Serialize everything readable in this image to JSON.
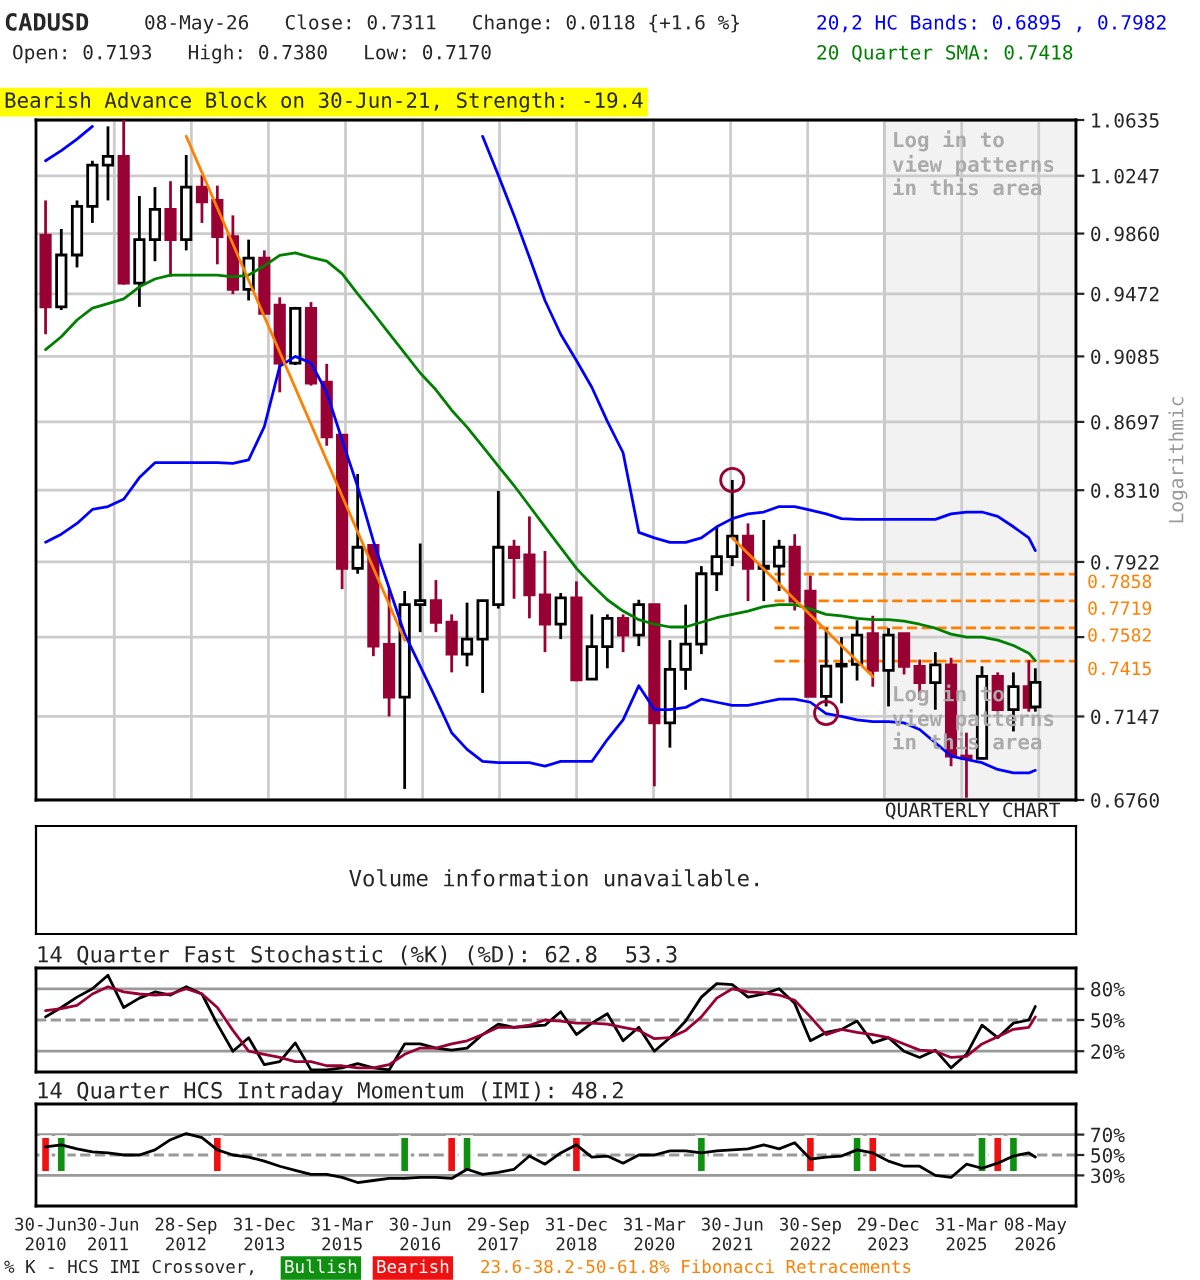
{
  "chart_data": [
    {
      "type": "candlestick",
      "title": "CADUSD",
      "x": [
        "2010-06-30",
        "2010-09-30",
        "2010-12-31",
        "2011-03-31",
        "2011-06-30",
        "2011-09-30",
        "2011-12-31",
        "2012-03-31",
        "2012-06-30",
        "2012-09-30",
        "2012-12-31",
        "2013-03-31",
        "2013-06-30",
        "2013-09-30",
        "2013-12-31",
        "2014-03-31",
        "2014-06-30",
        "2014-09-30",
        "2014-12-31",
        "2015-03-31",
        "2015-06-30",
        "2015-09-30",
        "2015-12-31",
        "2016-03-31",
        "2016-06-30",
        "2016-09-30",
        "2016-12-31",
        "2017-03-31",
        "2017-06-30",
        "2017-09-30",
        "2017-12-31",
        "2018-03-31",
        "2018-06-30",
        "2018-09-30",
        "2018-12-31",
        "2019-03-31",
        "2019-06-30",
        "2019-09-30",
        "2019-12-31",
        "2020-03-31",
        "2020-06-30",
        "2020-09-30",
        "2020-12-31",
        "2021-03-31",
        "2021-06-30",
        "2021-09-30",
        "2021-12-31",
        "2022-03-31",
        "2022-06-30",
        "2022-09-30",
        "2022-12-31",
        "2023-03-31",
        "2023-06-30",
        "2023-09-30",
        "2023-12-31",
        "2024-03-31",
        "2024-06-30",
        "2024-09-30",
        "2024-12-31",
        "2025-03-31",
        "2025-06-30",
        "2025-09-30",
        "2025-12-31",
        "2026-03-31",
        "2026-05-08"
      ],
      "ohlc": [
        [
          0.985,
          1.008,
          0.922,
          0.939
        ],
        [
          0.939,
          0.989,
          0.937,
          0.972
        ],
        [
          0.972,
          1.008,
          0.964,
          1.004
        ],
        [
          1.004,
          1.035,
          0.993,
          1.032
        ],
        [
          1.032,
          1.059,
          1.008,
          1.038
        ],
        [
          1.038,
          1.0635,
          0.953,
          0.954
        ],
        [
          0.954,
          1.011,
          0.939,
          0.982
        ],
        [
          0.982,
          1.017,
          0.968,
          1.002
        ],
        [
          1.002,
          1.021,
          0.958,
          0.982
        ],
        [
          0.982,
          1.039,
          0.975,
          1.017
        ],
        [
          1.017,
          1.025,
          0.993,
          1.007
        ],
        [
          1.008,
          1.018,
          0.966,
          0.984
        ],
        [
          0.984,
          0.998,
          0.947,
          0.95
        ],
        [
          0.95,
          0.982,
          0.943,
          0.97
        ],
        [
          0.97,
          0.975,
          0.934,
          0.935
        ],
        [
          0.94,
          0.945,
          0.887,
          0.9045
        ],
        [
          0.9045,
          0.939,
          0.9033,
          0.938
        ],
        [
          0.938,
          0.942,
          0.891,
          0.8925
        ],
        [
          0.893,
          0.904,
          0.856,
          0.861
        ],
        [
          0.862,
          0.862,
          0.778,
          0.7888
        ],
        [
          0.7888,
          0.84,
          0.786,
          0.8
        ],
        [
          0.801,
          0.801,
          0.744,
          0.749
        ],
        [
          0.7498,
          0.778,
          0.7147,
          0.724
        ],
        [
          0.724,
          0.777,
          0.681,
          0.77
        ],
        [
          0.77,
          0.802,
          0.756,
          0.772
        ],
        [
          0.772,
          0.7827,
          0.756,
          0.761
        ],
        [
          0.761,
          0.765,
          0.736,
          0.745
        ],
        [
          0.745,
          0.771,
          0.739,
          0.7525
        ],
        [
          0.7525,
          0.7725,
          0.726,
          0.772
        ],
        [
          0.77,
          0.8306,
          0.768,
          0.8
        ],
        [
          0.8,
          0.804,
          0.773,
          0.7945
        ],
        [
          0.796,
          0.8166,
          0.763,
          0.775
        ],
        [
          0.775,
          0.798,
          0.746,
          0.76
        ],
        [
          0.76,
          0.776,
          0.7525,
          0.7735
        ],
        [
          0.7735,
          0.782,
          0.7317,
          0.7323
        ],
        [
          0.7327,
          0.765,
          0.7323,
          0.7487
        ],
        [
          0.7487,
          0.765,
          0.738,
          0.763
        ],
        [
          0.763,
          0.765,
          0.746,
          0.7545
        ],
        [
          0.7545,
          0.7725,
          0.749,
          0.77
        ],
        [
          0.77,
          0.77,
          0.6822,
          0.7116
        ],
        [
          0.7116,
          0.752,
          0.7,
          0.7375
        ],
        [
          0.7375,
          0.77,
          0.7275,
          0.75
        ],
        [
          0.75,
          0.79,
          0.745,
          0.786
        ],
        [
          0.786,
          0.811,
          0.777,
          0.795
        ],
        [
          0.795,
          0.8367,
          0.79,
          0.806
        ],
        [
          0.806,
          0.8128,
          0.7718,
          0.7888
        ],
        [
          0.7888,
          0.8147,
          0.7718,
          0.79
        ],
        [
          0.79,
          0.804,
          0.777,
          0.8
        ],
        [
          0.8,
          0.807,
          0.767,
          0.7718
        ],
        [
          0.777,
          0.785,
          0.7243,
          0.7243
        ],
        [
          0.7243,
          0.758,
          0.7195,
          0.7391
        ],
        [
          0.7391,
          0.7535,
          0.721,
          0.74
        ],
        [
          0.74,
          0.762,
          0.732,
          0.7545
        ],
        [
          0.7552,
          0.7643,
          0.729,
          0.737
        ],
        [
          0.737,
          0.758,
          0.7195,
          0.7545
        ],
        [
          0.7552,
          0.7555,
          0.735,
          0.739
        ],
        [
          0.739,
          0.7423,
          0.7227,
          0.731
        ],
        [
          0.731,
          0.746,
          0.7179,
          0.7397
        ],
        [
          0.7397,
          0.7432,
          0.6914,
          0.6961
        ],
        [
          0.6961,
          0.707,
          0.677,
          0.695
        ],
        [
          0.695,
          0.739,
          0.6945,
          0.734
        ],
        [
          0.734,
          0.736,
          0.717,
          0.718
        ],
        [
          0.718,
          0.736,
          0.7076,
          0.729
        ],
        [
          0.729,
          0.742,
          0.717,
          0.719
        ],
        [
          0.7193,
          0.738,
          0.717,
          0.7311
        ]
      ],
      "colors": [
        "#990033",
        "#ffffff",
        "#ffffff",
        "#ffffff",
        "#ffffff",
        "#990033",
        "#ffffff",
        "#ffffff",
        "#990033",
        "#ffffff",
        "#990033",
        "#990033",
        "#990033",
        "#ffffff",
        "#990033",
        "#990033",
        "#ffffff",
        "#990033",
        "#990033",
        "#990033",
        "#ffffff",
        "#990033",
        "#990033",
        "#ffffff",
        "#ffffff",
        "#990033",
        "#990033",
        "#ffffff",
        "#ffffff",
        "#ffffff",
        "#990033",
        "#990033",
        "#990033",
        "#ffffff",
        "#990033",
        "#ffffff",
        "#ffffff",
        "#990033",
        "#ffffff",
        "#990033",
        "#ffffff",
        "#ffffff",
        "#ffffff",
        "#ffffff",
        "#ffffff",
        "#990033",
        "#ffffff",
        "#ffffff",
        "#990033",
        "#990033",
        "#ffffff",
        "#ffffff",
        "#ffffff",
        "#990033",
        "#ffffff",
        "#990033",
        "#990033",
        "#ffffff",
        "#990033",
        "#990033",
        "#ffffff",
        "#990033",
        "#ffffff",
        "#990033",
        "#ffffff"
      ],
      "series": [
        {
          "type": "line",
          "name": "20,2 HC Bands: 0.6895 , 0.7982",
          "color": "#0000ff",
          "values": [
            1.035,
            1.042,
            1.05,
            1.059,
            null,
            null,
            null,
            null,
            null,
            null,
            null,
            null,
            null,
            null,
            null,
            null,
            null,
            null,
            null,
            null,
            null,
            null,
            null,
            null,
            null,
            null,
            null,
            null,
            1.052,
            1.025,
            0.998,
            0.9705,
            0.943,
            0.922,
            0.906,
            0.89,
            0.87,
            0.852,
            0.808,
            0.805,
            0.8026,
            0.8026,
            0.805,
            0.811,
            0.8154,
            0.818,
            0.819,
            0.822,
            0.822,
            0.82,
            0.818,
            0.8154,
            0.815,
            0.815,
            0.815,
            0.815,
            0.815,
            0.815,
            0.818,
            0.819,
            0.819,
            0.8166,
            0.811,
            0.805,
            0.7982
          ]
        },
        {
          "type": "line",
          "color": "#0000ff",
          "values": [
            0.8027,
            0.807,
            0.8128,
            0.8204,
            0.822,
            0.826,
            0.838,
            0.8464,
            0.8464,
            0.8464,
            0.8464,
            0.8464,
            0.846,
            0.848,
            0.867,
            0.9025,
            0.9085,
            0.9045,
            0.887,
            0.8593,
            0.833,
            0.8033,
            0.7786,
            0.7551,
            0.7391,
            0.7231,
            0.707,
            0.6992,
            0.6936,
            0.693,
            0.693,
            0.693,
            0.6914,
            0.6936,
            0.6936,
            0.6936,
            0.7038,
            0.7131,
            0.7295,
            0.718,
            0.718,
            0.719,
            0.723,
            0.7215,
            0.72,
            0.72,
            0.7215,
            0.723,
            0.723,
            0.7215,
            0.716,
            0.7147,
            0.7131,
            0.7122,
            0.7122,
            0.7116,
            0.7085,
            0.7023,
            0.6961,
            0.6945,
            0.693,
            0.6899,
            0.6883,
            0.6883,
            0.6895
          ]
        },
        {
          "type": "line",
          "name": "20 Quarter SMA: 0.7418",
          "color": "#008000",
          "values": [
            0.9126,
            0.9205,
            0.9308,
            0.9382,
            0.941,
            0.944,
            0.9516,
            0.9566,
            0.9591,
            0.9591,
            0.9591,
            0.9591,
            0.958,
            0.9591,
            0.965,
            0.9717,
            0.9734,
            0.9705,
            0.968,
            0.96,
            0.9472,
            0.935,
            0.9226,
            0.9105,
            0.8985,
            0.8885,
            0.8765,
            0.8667,
            0.8556,
            0.8445,
            0.8336,
            0.8223,
            0.8109,
            0.7998,
            0.7888,
            0.7803,
            0.7725,
            0.7667,
            0.7623,
            0.76,
            0.7586,
            0.7586,
            0.761,
            0.7633,
            0.765,
            0.7667,
            0.769,
            0.77,
            0.77,
            0.7677,
            0.765,
            0.7643,
            0.763,
            0.7623,
            0.7623,
            0.7616,
            0.76,
            0.758,
            0.755,
            0.7535,
            0.7535,
            0.752,
            0.7493,
            0.7455,
            0.7418
          ]
        },
        {
          "type": "line",
          "color": "#ff8000",
          "x": [
            "2012-09-30",
            "2016-03-31"
          ],
          "values": [
            1.052,
            0.7519
          ]
        },
        {
          "type": "line",
          "color": "#ff8000",
          "x": [
            "2021-06-30",
            "2023-09-30"
          ],
          "values": [
            0.805,
            0.734
          ]
        },
        {
          "type": "scatter",
          "marker": "circle",
          "color": "#990033",
          "x": [
            "2021-06-30",
            "2022-12-31"
          ],
          "values": [
            0.8367,
            0.7163
          ]
        }
      ],
      "log": true,
      "ylim": [
        0.676,
        1.0635
      ],
      "yticks": [
        1.0635,
        1.0247,
        {
          "value": 0.986,
          "label": "0.9860"
        },
        0.9472,
        0.9085,
        0.8697,
        {
          "value": 0.831,
          "label": "0.8310"
        },
        0.7922,
        {
          "value": 0.7535,
          "label": null
        },
        0.7147,
        {
          "value": 0.676,
          "label": "0.6760"
        }
      ],
      "xlim": [
        "2010-05-05",
        "2027-01-01"
      ],
      "xticks": [
        {
          "value": "2011-08-06",
          "label": null
        },
        {
          "value": "2012-10-30",
          "label": null
        },
        {
          "value": "2014-01-24",
          "label": null
        },
        {
          "value": "2015-04-20",
          "label": null
        },
        {
          "value": "2016-07-14",
          "label": null
        },
        {
          "value": "2017-10-07",
          "label": null
        },
        {
          "value": "2019-01-01",
          "label": null
        },
        {
          "value": "2020-03-26",
          "label": null
        },
        {
          "value": "2021-06-20",
          "label": null
        },
        {
          "value": "2022-09-14",
          "label": null
        },
        {
          "value": "2023-12-08",
          "label": null
        },
        {
          "value": "2025-03-03",
          "label": null
        },
        {
          "value": "2026-05-28",
          "label": null
        }
      ],
      "tick_labels": "y",
      "grid": true,
      "ylabel": "Logarithmic",
      "ref_lines": [
        {
          "axis": "y",
          "value": 0.7858,
          "label": "0.7858",
          "color": "#ff8000",
          "line_style": "dashed"
        },
        {
          "axis": "y",
          "value": 0.7719,
          "label": "0.7719",
          "color": "#ff8000",
          "line_style": "dashed"
        },
        {
          "axis": "y",
          "value": 0.7582,
          "label": "0.7582",
          "color": "#ff8000",
          "line_style": "dashed"
        },
        {
          "axis": "y",
          "value": 0.7415,
          "label": "0.7415",
          "color": "#ff8000",
          "line_style": "dashed"
        }
      ],
      "bands": [
        {
          "axis": "x",
          "from": "2023-12-08",
          "to": "2027-01-01",
          "color": "#f2f2f2"
        }
      ],
      "annotations": [
        "08-May-26   Close: 0.7311   Change: 0.0118 {+1.6 %}",
        "Open: 0.7193   High: 0.7380   Low: 0.7170",
        "Bearish Advance Block on 30-Jun-21, Strength: -19.4",
        "Log in to\nview patterns\nin this area",
        "Log in to\nview patterns\nin this area",
        "QUARTERLY CHART"
      ]
    },
    {
      "type": "other",
      "annotations": [
        "Volume information unavailable."
      ]
    },
    {
      "type": "line",
      "title": "14 Quarter Fast Stochastic (%K) (%D): 62.8  53.3",
      "x": [
        "2010-06-30",
        "2010-09-30",
        "2010-12-31",
        "2011-03-31",
        "2011-06-30",
        "2011-09-30",
        "2011-12-31",
        "2012-03-31",
        "2012-06-30",
        "2012-09-30",
        "2012-12-31",
        "2013-03-31",
        "2013-06-30",
        "2013-09-30",
        "2013-12-31",
        "2014-03-31",
        "2014-06-30",
        "2014-09-30",
        "2014-12-31",
        "2015-03-31",
        "2015-06-30",
        "2015-09-30",
        "2015-12-31",
        "2016-03-31",
        "2016-06-30",
        "2016-09-30",
        "2016-12-31",
        "2017-03-31",
        "2017-06-30",
        "2017-09-30",
        "2017-12-31",
        "2018-03-31",
        "2018-06-30",
        "2018-09-30",
        "2018-12-31",
        "2019-03-31",
        "2019-06-30",
        "2019-09-30",
        "2019-12-31",
        "2020-03-31",
        "2020-06-30",
        "2020-09-30",
        "2020-12-31",
        "2021-03-31",
        "2021-06-30",
        "2021-09-30",
        "2021-12-31",
        "2022-03-31",
        "2022-06-30",
        "2022-09-30",
        "2022-12-31",
        "2023-03-31",
        "2023-06-30",
        "2023-09-30",
        "2023-12-31",
        "2024-03-31",
        "2024-06-30",
        "2024-09-30",
        "2024-12-31",
        "2025-03-31",
        "2025-06-30",
        "2025-09-30",
        "2025-12-31",
        "2026-03-31",
        "2026-05-08"
      ],
      "series": [
        {
          "color": "#000000",
          "values": [
            53,
            62,
            72,
            80,
            93,
            62,
            71,
            77,
            74,
            82,
            75,
            46,
            20,
            33,
            7,
            10,
            28,
            2,
            2,
            4,
            8,
            4,
            2,
            27,
            27,
            23,
            21,
            23,
            36,
            46,
            43,
            44,
            45,
            58,
            36,
            47,
            56,
            30,
            43,
            20,
            33,
            49,
            72,
            85,
            84,
            72,
            75,
            80,
            66,
            30,
            38,
            41,
            49,
            28,
            33,
            20,
            14,
            21,
            4,
            17,
            45,
            33,
            47,
            50,
            63
          ]
        },
        {
          "color": "#990033",
          "values": [
            59,
            61,
            64,
            75,
            82,
            77,
            75,
            74,
            75,
            80,
            75,
            62,
            40,
            20,
            17,
            14,
            10,
            10,
            6,
            6,
            4,
            4,
            7,
            17,
            23,
            23,
            27,
            30,
            36,
            43,
            43,
            45,
            50,
            49,
            47,
            47,
            46,
            43,
            40,
            32,
            33,
            40,
            53,
            71,
            80,
            77,
            76,
            74,
            69,
            53,
            36,
            41,
            38,
            36,
            33,
            27,
            21,
            20,
            14,
            15,
            27,
            34,
            41,
            43,
            53
          ]
        }
      ],
      "xlim": [
        "2010-05-05",
        "2027-01-01"
      ],
      "ylim": [
        0,
        100
      ],
      "yticks": [
        {
          "value": 20,
          "label": "20%"
        },
        {
          "value": 50,
          "label": "50%"
        },
        {
          "value": 80,
          "label": "80%"
        }
      ],
      "tick_labels": "y",
      "ref_lines": [
        {
          "axis": "y",
          "value": 80,
          "color": "#999999",
          "line_style": "solid"
        },
        {
          "axis": "y",
          "value": 50,
          "color": "#999999",
          "line_style": "dashed"
        },
        {
          "axis": "y",
          "value": 20,
          "color": "#999999",
          "line_style": "solid"
        }
      ]
    },
    {
      "type": "line",
      "title": "14 Quarter HCS Intraday Momentum (IMI): 48.2",
      "x": [
        "2010-06-30",
        "2010-09-30",
        "2010-12-31",
        "2011-03-31",
        "2011-06-30",
        "2011-09-30",
        "2011-12-31",
        "2012-03-31",
        "2012-06-30",
        "2012-09-30",
        "2012-12-31",
        "2013-03-31",
        "2013-06-30",
        "2013-09-30",
        "2013-12-31",
        "2014-03-31",
        "2014-06-30",
        "2014-09-30",
        "2014-12-31",
        "2015-03-31",
        "2015-06-30",
        "2015-09-30",
        "2015-12-31",
        "2016-03-31",
        "2016-06-30",
        "2016-09-30",
        "2016-12-31",
        "2017-03-31",
        "2017-06-30",
        "2017-09-30",
        "2017-12-31",
        "2018-03-31",
        "2018-06-30",
        "2018-09-30",
        "2018-12-31",
        "2019-03-31",
        "2019-06-30",
        "2019-09-30",
        "2019-12-31",
        "2020-03-31",
        "2020-06-30",
        "2020-09-30",
        "2020-12-31",
        "2021-03-31",
        "2021-06-30",
        "2021-09-30",
        "2021-12-31",
        "2022-03-31",
        "2022-06-30",
        "2022-09-30",
        "2022-12-31",
        "2023-03-31",
        "2023-06-30",
        "2023-09-30",
        "2023-12-31",
        "2024-03-31",
        "2024-06-30",
        "2024-09-30",
        "2024-12-31",
        "2025-03-31",
        "2025-06-30",
        "2025-09-30",
        "2025-12-31",
        "2026-03-31",
        "2026-05-08"
      ],
      "series": [
        {
          "type": "line",
          "color": "#000000",
          "values": [
            58,
            60,
            56,
            53,
            52,
            50,
            50,
            55,
            65,
            71,
            67,
            55,
            50,
            48,
            44,
            39,
            35,
            31,
            31,
            28,
            23,
            25,
            27,
            27,
            28,
            28,
            27,
            36,
            31,
            33,
            36,
            49,
            41,
            52,
            60,
            48,
            49,
            42,
            50,
            50,
            54,
            54,
            52,
            54,
            55,
            56,
            60,
            56,
            62,
            46,
            48,
            49,
            55,
            52,
            44,
            39,
            39,
            30,
            28,
            41,
            37,
            42,
            49,
            52,
            48
          ]
        },
        {
          "type": "bar",
          "name": "Bullish",
          "color": "#109010",
          "x": [
            "2010-09-30",
            "2016-03-31",
            "2017-03-31",
            "2020-12-31",
            "2023-06-30",
            "2025-06-30",
            "2025-12-31"
          ],
          "base": [
            33,
            33,
            33,
            33,
            33,
            33,
            33
          ],
          "values": [
            35,
            35,
            35,
            35,
            35,
            35,
            35
          ]
        },
        {
          "type": "bar",
          "name": "Bearish",
          "color": "#ee1111",
          "x": [
            "2010-06-30",
            "2013-03-31",
            "2016-12-31",
            "2018-12-31",
            "2022-09-30",
            "2023-09-30",
            "2025-09-30"
          ],
          "base": [
            33,
            33,
            33,
            33,
            33,
            33,
            33
          ],
          "values": [
            35,
            35,
            35,
            35,
            35,
            35,
            35
          ]
        }
      ],
      "xlim": [
        "2010-05-05",
        "2027-01-01"
      ],
      "xticks": [
        {
          "value": "2010-06-30",
          "label": "30-Jun\n2010"
        },
        {
          "value": "2011-06-30",
          "label": "30-Jun\n2011"
        },
        {
          "value": "2012-09-28",
          "label": "28-Sep\n2012"
        },
        {
          "value": "2013-12-31",
          "label": "31-Dec\n2013"
        },
        {
          "value": "2015-03-31",
          "label": "31-Mar\n2015"
        },
        {
          "value": "2016-06-30",
          "label": "30-Jun\n2016"
        },
        {
          "value": "2017-09-29",
          "label": "29-Sep\n2017"
        },
        {
          "value": "2018-12-31",
          "label": "31-Dec\n2018"
        },
        {
          "value": "2020-03-31",
          "label": "31-Mar\n2020"
        },
        {
          "value": "2021-06-30",
          "label": "30-Jun\n2021"
        },
        {
          "value": "2022-09-30",
          "label": "30-Sep\n2022"
        },
        {
          "value": "2023-12-29",
          "label": "29-Dec\n2023"
        },
        {
          "value": "2025-03-31",
          "label": "31-Mar\n2025"
        },
        {
          "value": "2026-05-08",
          "label": "08-May\n2026"
        }
      ],
      "ylim": [
        0,
        100
      ],
      "yticks": [
        {
          "value": 30,
          "label": "30%"
        },
        {
          "value": 50,
          "label": "50%"
        },
        {
          "value": 70,
          "label": "70%"
        }
      ],
      "ref_lines": [
        {
          "axis": "y",
          "value": 70,
          "color": "#999999",
          "line_style": "solid"
        },
        {
          "axis": "y",
          "value": 50,
          "color": "#999999",
          "line_style": "dashed"
        },
        {
          "axis": "y",
          "value": 30,
          "color": "#999999",
          "line_style": "solid"
        }
      ],
      "annotations": [
        "% K - HCS IMI Crossover,",
        "23.6-38.2-50-61.8% Fibonacci Retracements"
      ]
    }
  ]
}
